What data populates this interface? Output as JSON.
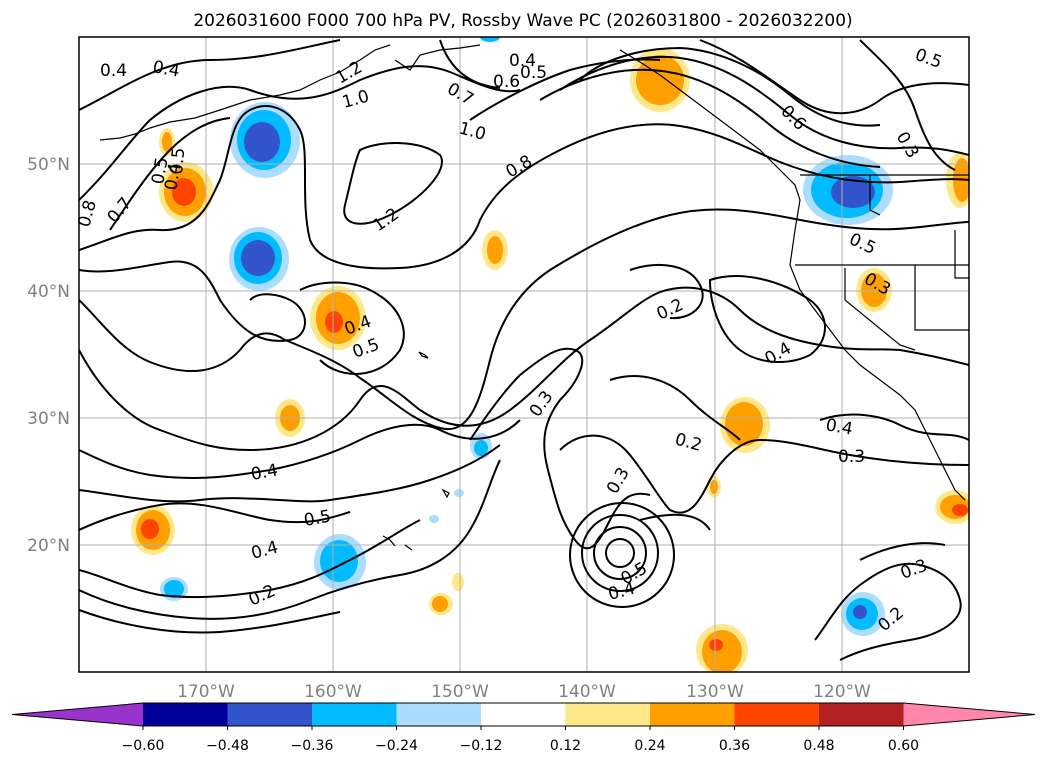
{
  "title": "2026031600 F000 700 hPa PV, Rossby Wave PC (2026031800 - 2026032200)",
  "map": {
    "projection": "equirectangular",
    "lon_range": [
      -180,
      -110
    ],
    "lat_range": [
      10,
      60
    ],
    "gridlines": true,
    "lon_ticks": [
      "170°W",
      "160°W",
      "150°W",
      "140°W",
      "130°W",
      "120°W"
    ],
    "lat_ticks": [
      "20°N",
      "30°N",
      "40°N",
      "50°N"
    ],
    "contour_labels": [
      "0.4",
      "0.4",
      "1.2",
      "1.0",
      "0.7",
      "0.4",
      "0.5",
      "0.6",
      "0.5",
      "0.4",
      "0.5",
      "1.0",
      "0.8",
      "0.3",
      "0.6",
      "0.7",
      "0.5",
      "1.2",
      "0.8",
      "0.4",
      "0.5",
      "0.3",
      "0.2",
      "0.4",
      "0.3",
      "0.2",
      "0.4",
      "0.3",
      "0.4",
      "0.3",
      "0.5",
      "0.4",
      "0.5",
      "0.4",
      "0.2",
      "0.3",
      "0.2",
      "0.5"
    ]
  },
  "colorbar": {
    "colors": [
      "#9933cc",
      "#000099",
      "#3355cc",
      "#00bbff",
      "#aaddff",
      "#ffffff",
      "#ffe88a",
      "#ff9f00",
      "#ff4400",
      "#b22222",
      "#ff88aa"
    ],
    "ticks": [
      "−0.60",
      "−0.48",
      "−0.36",
      "−0.24",
      "−0.12",
      "0.12",
      "0.24",
      "0.36",
      "0.48",
      "0.60"
    ]
  }
}
